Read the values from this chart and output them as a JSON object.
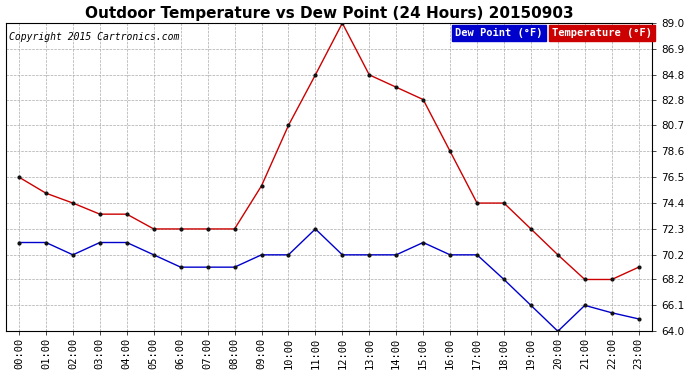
{
  "title": "Outdoor Temperature vs Dew Point (24 Hours) 20150903",
  "copyright": "Copyright 2015 Cartronics.com",
  "x_labels": [
    "00:00",
    "01:00",
    "02:00",
    "03:00",
    "04:00",
    "05:00",
    "06:00",
    "07:00",
    "08:00",
    "09:00",
    "10:00",
    "11:00",
    "12:00",
    "13:00",
    "14:00",
    "15:00",
    "16:00",
    "17:00",
    "18:00",
    "19:00",
    "20:00",
    "21:00",
    "22:00",
    "23:00"
  ],
  "temperature": [
    76.5,
    75.2,
    74.4,
    73.5,
    73.5,
    72.3,
    72.3,
    72.3,
    72.3,
    75.8,
    80.7,
    84.8,
    89.0,
    84.8,
    83.8,
    82.8,
    78.6,
    74.4,
    74.4,
    72.3,
    70.2,
    68.2,
    68.2,
    69.2
  ],
  "dew_point": [
    71.2,
    71.2,
    70.2,
    71.2,
    71.2,
    70.2,
    69.2,
    69.2,
    69.2,
    70.2,
    70.2,
    72.3,
    70.2,
    70.2,
    70.2,
    71.2,
    70.2,
    70.2,
    68.2,
    66.1,
    64.0,
    66.1,
    65.5,
    65.0
  ],
  "temp_color": "#cc0000",
  "dew_color": "#0000cc",
  "background": "#ffffff",
  "grid_color": "#aaaaaa",
  "ylim_min": 64.0,
  "ylim_max": 89.0,
  "yticks": [
    64.0,
    66.1,
    68.2,
    70.2,
    72.3,
    74.4,
    76.5,
    78.6,
    80.7,
    82.8,
    84.8,
    86.9,
    89.0
  ],
  "legend_dew_bg": "#0000cc",
  "legend_temp_bg": "#cc0000",
  "title_fontsize": 11,
  "copyright_fontsize": 7,
  "axis_fontsize": 7.5,
  "marker_color": "#111111",
  "marker_size": 4
}
